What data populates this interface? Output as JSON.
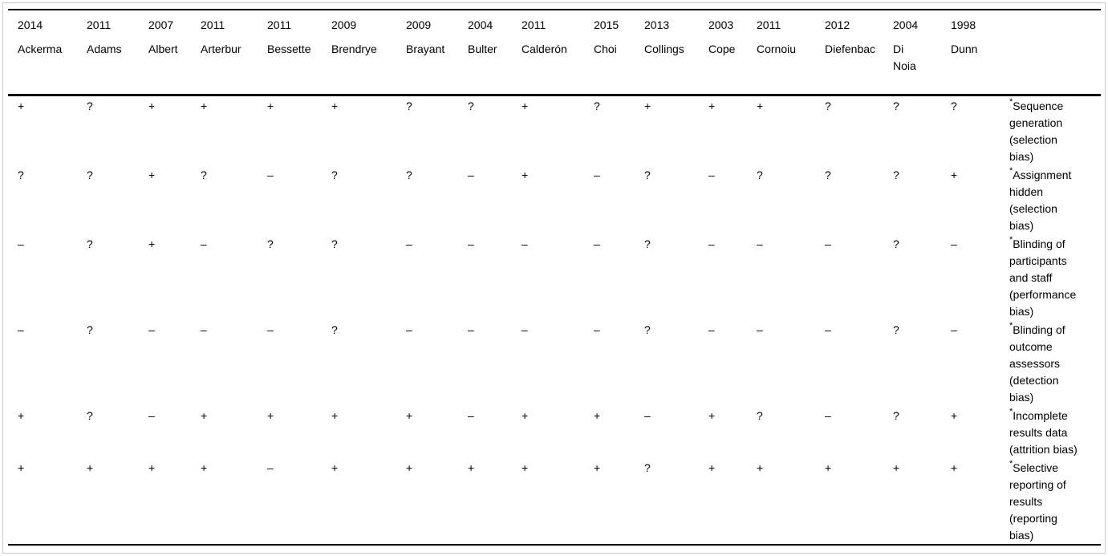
{
  "footnote_marker": "*",
  "colors": {
    "rule": "#000000",
    "frame_border": "#c9c9c9",
    "text": "#000000",
    "background": "#ffffff"
  },
  "table": {
    "studies": [
      {
        "year": "2014",
        "name": "Ackerma"
      },
      {
        "year": "2011",
        "name": "Adams"
      },
      {
        "year": "2007",
        "name": "Albert"
      },
      {
        "year": "2011",
        "name": "Arterbur"
      },
      {
        "year": "2011",
        "name": "Bessette"
      },
      {
        "year": "2009",
        "name": "Brendrye"
      },
      {
        "year": "2009",
        "name": "Brayant"
      },
      {
        "year": "2004",
        "name": "Bulter"
      },
      {
        "year": "2011",
        "name": "Calderón"
      },
      {
        "year": "2015",
        "name": "Choi"
      },
      {
        "year": "2013",
        "name": "Collings"
      },
      {
        "year": "2003",
        "name": "Cope"
      },
      {
        "year": "2011",
        "name": "Cornoiu"
      },
      {
        "year": "2012",
        "name": "Diefenbac"
      },
      {
        "year": "2004",
        "name": "Di\nNoia"
      },
      {
        "year": "1998",
        "name": "Dunn"
      }
    ],
    "rows": [
      {
        "label": "Sequence generation (selection bias)",
        "cells": [
          "+",
          "?",
          "+",
          "+",
          "+",
          "+",
          "?",
          "?",
          "+",
          "?",
          "+",
          "+",
          "+",
          "?",
          "?",
          "?"
        ]
      },
      {
        "label": "Assignment hidden (selection bias)",
        "cells": [
          "?",
          "?",
          "+",
          "?",
          "–",
          "?",
          "?",
          "–",
          "+",
          "–",
          "?",
          "–",
          "?",
          "?",
          "?",
          "+"
        ]
      },
      {
        "label": "Blinding of participants and staff (performance bias)",
        "cells": [
          "–",
          "?",
          "+",
          "–",
          "?",
          "?",
          "–",
          "–",
          "–",
          "–",
          "?",
          "–",
          "–",
          "–",
          "?",
          "–"
        ]
      },
      {
        "label": "Blinding of outcome assessors (detection bias)",
        "cells": [
          "–",
          "?",
          "–",
          "–",
          "–",
          "?",
          "–",
          "–",
          "–",
          "–",
          "?",
          "–",
          "–",
          "–",
          "?",
          "–"
        ]
      },
      {
        "label": "Incomplete results data (attrition bias)",
        "cells": [
          "+",
          "?",
          "–",
          "+",
          "+",
          "+",
          "+",
          "–",
          "+",
          "+",
          "–",
          "+",
          "?",
          "–",
          "?",
          "+"
        ]
      },
      {
        "label": "Selective reporting of results (reporting bias)",
        "cells": [
          "+",
          "+",
          "+",
          "+",
          "–",
          "+",
          "+",
          "+",
          "+",
          "+",
          "?",
          "+",
          "+",
          "+",
          "+",
          "+"
        ]
      }
    ]
  }
}
